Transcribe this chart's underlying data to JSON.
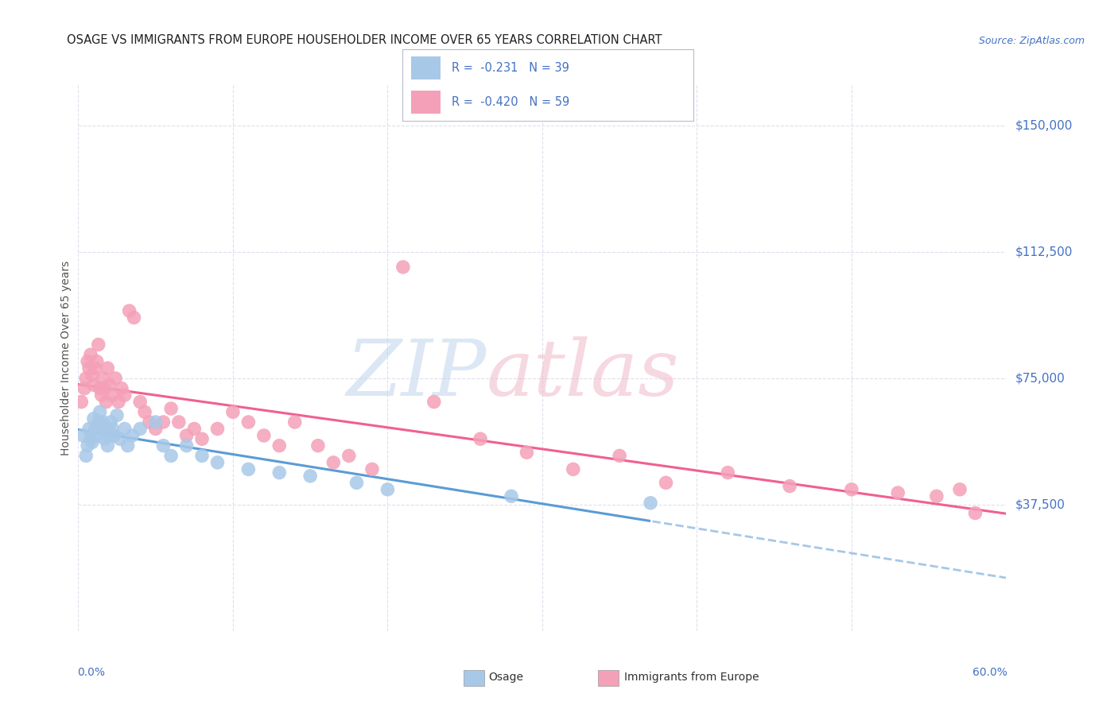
{
  "title": "OSAGE VS IMMIGRANTS FROM EUROPE HOUSEHOLDER INCOME OVER 65 YEARS CORRELATION CHART",
  "source": "Source: ZipAtlas.com",
  "ylabel": "Householder Income Over 65 years",
  "r1": "-0.231",
  "n1": "39",
  "r2": "-0.420",
  "n2": "59",
  "ytick_labels": [
    "$37,500",
    "$75,000",
    "$112,500",
    "$150,000"
  ],
  "ytick_values": [
    37500,
    75000,
    112500,
    150000
  ],
  "ymin": 0,
  "ymax": 162000,
  "xmin": 0.0,
  "xmax": 0.6,
  "color_blue": "#a8c8e8",
  "color_pink": "#f4a0b8",
  "color_blue_line": "#5b9bd5",
  "color_pink_line": "#f06090",
  "color_blue_text": "#4472c4",
  "color_axis": "#4472c4",
  "background_color": "#ffffff",
  "grid_color": "#d8d8e8",
  "osage_x": [
    0.003,
    0.005,
    0.006,
    0.007,
    0.008,
    0.009,
    0.01,
    0.011,
    0.012,
    0.013,
    0.014,
    0.015,
    0.016,
    0.017,
    0.018,
    0.019,
    0.02,
    0.021,
    0.022,
    0.023,
    0.025,
    0.027,
    0.03,
    0.032,
    0.035,
    0.04,
    0.05,
    0.055,
    0.06,
    0.07,
    0.08,
    0.09,
    0.11,
    0.13,
    0.15,
    0.18,
    0.2,
    0.28,
    0.37
  ],
  "osage_y": [
    58000,
    52000,
    55000,
    60000,
    57000,
    56000,
    63000,
    60000,
    58000,
    62000,
    65000,
    60000,
    62000,
    57000,
    60000,
    55000,
    58000,
    62000,
    60000,
    58000,
    64000,
    57000,
    60000,
    55000,
    58000,
    60000,
    62000,
    55000,
    52000,
    55000,
    52000,
    50000,
    48000,
    47000,
    46000,
    44000,
    42000,
    40000,
    38000
  ],
  "europe_x": [
    0.002,
    0.004,
    0.005,
    0.006,
    0.007,
    0.008,
    0.009,
    0.01,
    0.011,
    0.012,
    0.013,
    0.014,
    0.015,
    0.016,
    0.017,
    0.018,
    0.019,
    0.02,
    0.022,
    0.024,
    0.026,
    0.028,
    0.03,
    0.033,
    0.036,
    0.04,
    0.043,
    0.046,
    0.05,
    0.055,
    0.06,
    0.065,
    0.07,
    0.075,
    0.08,
    0.09,
    0.1,
    0.11,
    0.12,
    0.13,
    0.14,
    0.155,
    0.165,
    0.175,
    0.19,
    0.21,
    0.23,
    0.26,
    0.29,
    0.32,
    0.35,
    0.38,
    0.42,
    0.46,
    0.5,
    0.53,
    0.555,
    0.57,
    0.58
  ],
  "europe_y": [
    68000,
    72000,
    75000,
    80000,
    78000,
    82000,
    76000,
    73000,
    78000,
    80000,
    85000,
    72000,
    70000,
    75000,
    72000,
    68000,
    78000,
    73000,
    70000,
    75000,
    68000,
    72000,
    70000,
    95000,
    93000,
    68000,
    65000,
    62000,
    60000,
    62000,
    66000,
    62000,
    58000,
    60000,
    57000,
    60000,
    65000,
    62000,
    58000,
    55000,
    62000,
    55000,
    50000,
    52000,
    48000,
    108000,
    68000,
    57000,
    53000,
    48000,
    52000,
    44000,
    47000,
    43000,
    42000,
    41000,
    40000,
    42000,
    35000
  ]
}
